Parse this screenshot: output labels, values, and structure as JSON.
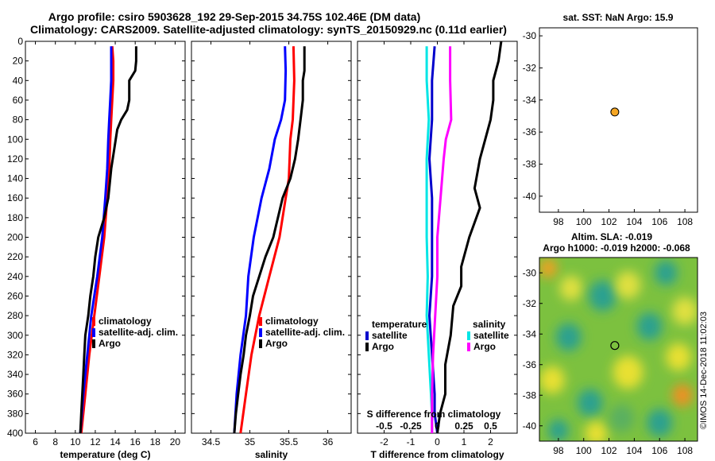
{
  "title_line1": "Argo profile: csiro 5903628_192 29-Sep-2015 34.75S 102.46E (DM data)",
  "title_line2": "Climatology: CARS2009. Satellite-adjusted climatology: synTS_20150929.nc (0.11d earlier)",
  "watermark": "©IMOS 14-Dec-2018 11:02:03",
  "chart_data": [
    {
      "id": "temperature",
      "type": "line",
      "xlabel": "temperature (deg C)",
      "ylabel": "",
      "xlim": [
        5,
        21
      ],
      "ylim": [
        400,
        0
      ],
      "xticks": [
        6,
        8,
        10,
        12,
        14,
        16,
        18,
        20
      ],
      "yticks": [
        0,
        20,
        40,
        60,
        80,
        100,
        120,
        140,
        160,
        180,
        200,
        220,
        240,
        260,
        280,
        300,
        320,
        340,
        360,
        380,
        400
      ],
      "legend": [
        "climatology",
        "satellite-adj. clim.",
        "Argo"
      ],
      "series": [
        {
          "name": "climatology",
          "color": "#ff0000",
          "depth": [
            5,
            20,
            40,
            60,
            80,
            100,
            130,
            160,
            200,
            240,
            280,
            320,
            360,
            400
          ],
          "values": [
            13.7,
            13.8,
            13.8,
            13.7,
            13.6,
            13.5,
            13.4,
            13.2,
            12.9,
            12.4,
            11.9,
            11.4,
            11.0,
            10.6
          ]
        },
        {
          "name": "satellite-adj. clim.",
          "color": "#0000ff",
          "depth": [
            5,
            20,
            40,
            60,
            80,
            100,
            130,
            160,
            200,
            240,
            280,
            320,
            360,
            400
          ],
          "values": [
            13.6,
            13.6,
            13.6,
            13.5,
            13.4,
            13.3,
            13.2,
            13.0,
            12.7,
            12.2,
            11.6,
            11.2,
            10.8,
            10.5
          ]
        },
        {
          "name": "Argo",
          "color": "#000000",
          "depth": [
            5,
            20,
            30,
            40,
            60,
            70,
            80,
            90,
            110,
            130,
            160,
            180,
            200,
            220,
            240,
            260,
            280,
            300,
            320,
            340,
            360,
            380,
            400
          ],
          "values": [
            16.1,
            16.1,
            16.0,
            15.4,
            15.4,
            15.2,
            14.6,
            14.2,
            13.9,
            13.6,
            13.3,
            12.9,
            12.3,
            12.0,
            11.8,
            11.5,
            11.3,
            11.0,
            10.9,
            10.8,
            10.7,
            10.6,
            10.5
          ]
        }
      ]
    },
    {
      "id": "salinity",
      "type": "line",
      "xlabel": "salinity",
      "ylabel": "",
      "xlim": [
        34.25,
        36.3
      ],
      "ylim": [
        400,
        0
      ],
      "xticks": [
        34.5,
        35,
        35.5,
        36
      ],
      "legend": [
        "climatology",
        "satellite-adj. clim.",
        "Argo"
      ],
      "series": [
        {
          "name": "climatology",
          "color": "#ff0000",
          "depth": [
            5,
            40,
            80,
            100,
            140,
            160,
            200,
            240,
            280,
            320,
            360,
            400
          ],
          "values": [
            35.56,
            35.57,
            35.55,
            35.52,
            35.5,
            35.46,
            35.38,
            35.25,
            35.12,
            35.02,
            34.95,
            34.88
          ]
        },
        {
          "name": "satellite-adj. clim.",
          "color": "#0000ff",
          "depth": [
            5,
            30,
            60,
            80,
            100,
            130,
            160,
            200,
            240,
            280,
            320,
            360,
            400
          ],
          "values": [
            35.45,
            35.46,
            35.45,
            35.4,
            35.32,
            35.25,
            35.15,
            35.05,
            34.98,
            34.95,
            34.88,
            34.83,
            34.8
          ]
        },
        {
          "name": "Argo",
          "color": "#000000",
          "depth": [
            5,
            30,
            40,
            60,
            80,
            100,
            120,
            140,
            160,
            200,
            220,
            240,
            260,
            280,
            300,
            320,
            340,
            360,
            380,
            400
          ],
          "values": [
            35.7,
            35.7,
            35.68,
            35.68,
            35.65,
            35.62,
            35.58,
            35.52,
            35.42,
            35.3,
            35.2,
            35.12,
            35.04,
            35.0,
            34.95,
            34.92,
            34.88,
            34.85,
            34.82,
            34.8
          ]
        }
      ]
    },
    {
      "id": "difference",
      "type": "line",
      "xlabel": "T difference from climatology",
      "xlabel_top": "S difference from climatology",
      "xlim": [
        -3,
        3
      ],
      "ylim": [
        400,
        0
      ],
      "xticks": [
        -2,
        -1,
        0,
        1,
        2
      ],
      "xticks_s_labels": [
        "-0.5",
        "-0.25",
        "0",
        "0.25",
        "0.5"
      ],
      "xticks_s_values": [
        -0.5,
        -0.25,
        0,
        0.25,
        0.5
      ],
      "legend_temperature_title": "temperature",
      "legend_salinity_title": "salinity",
      "legend_temperature": [
        "satellite",
        "Argo"
      ],
      "legend_salinity": [
        "satellite",
        "Argo"
      ],
      "series": [
        {
          "name": "temperature satellite",
          "color": "#0000cc",
          "depth": [
            5,
            40,
            80,
            120,
            160,
            200,
            240,
            280,
            320,
            360,
            380,
            400
          ],
          "values": [
            -0.1,
            -0.2,
            -0.2,
            -0.3,
            -0.2,
            -0.2,
            -0.2,
            -0.3,
            -0.2,
            -0.1,
            -0.1,
            0.0
          ]
        },
        {
          "name": "temperature Argo",
          "color": "#000000",
          "depth": [
            0,
            20,
            40,
            60,
            80,
            100,
            120,
            150,
            170,
            200,
            230,
            250,
            270,
            300,
            330,
            360,
            380,
            400
          ],
          "values": [
            2.4,
            2.3,
            2.1,
            2.1,
            2.0,
            1.8,
            1.6,
            1.4,
            1.6,
            1.2,
            0.9,
            0.9,
            0.6,
            0.5,
            0.3,
            0.3,
            0.1,
            0.0
          ]
        },
        {
          "name": "salinity satellite",
          "color": "#00e5e5",
          "depth": [
            5,
            40,
            80,
            120,
            160,
            200,
            240,
            280,
            320,
            360,
            380,
            400
          ],
          "values": [
            -0.1,
            -0.1,
            -0.08,
            -0.1,
            -0.1,
            -0.1,
            -0.09,
            -0.1,
            -0.08,
            -0.06,
            -0.05,
            -0.05
          ]
        },
        {
          "name": "salinity Argo",
          "color": "#ff00ff",
          "depth": [
            5,
            40,
            80,
            100,
            120,
            160,
            200,
            240,
            280,
            320,
            360,
            380,
            400
          ],
          "values": [
            0.12,
            0.12,
            0.13,
            0.08,
            0.06,
            0.03,
            0.0,
            0.0,
            -0.02,
            -0.04,
            -0.05,
            -0.05,
            -0.05
          ]
        }
      ]
    },
    {
      "id": "sst-map",
      "type": "scatter",
      "title": "sat. SST: NaN Argo: 15.9",
      "xlim": [
        96.5,
        109
      ],
      "ylim": [
        -41,
        -29.5
      ],
      "xticks": [
        98,
        100,
        102,
        104,
        106,
        108
      ],
      "yticks": [
        -30,
        -32,
        -34,
        -36,
        -38,
        -40
      ],
      "point": {
        "lon": 102.46,
        "lat": -34.75,
        "color": "#f5a623"
      }
    },
    {
      "id": "sla-map",
      "type": "heatmap",
      "title_line1": "Altim. SLA: -0.019",
      "title_line2": "Argo h1000: -0.019 h2000: -0.068",
      "xlim": [
        96.5,
        109
      ],
      "ylim": [
        -41,
        -29
      ],
      "xticks": [
        98,
        100,
        102,
        104,
        106,
        108
      ],
      "yticks": [
        -30,
        -32,
        -34,
        -36,
        -38,
        -40
      ],
      "point": {
        "lon": 102.46,
        "lat": -34.75
      },
      "blobs": [
        {
          "lon": 97.2,
          "lat": -29.7,
          "color": "#f0a020",
          "r": 0.7
        },
        {
          "lon": 97.5,
          "lat": -37.0,
          "color": "#e8e030",
          "r": 1.0
        },
        {
          "lon": 99.0,
          "lat": -31.0,
          "color": "#e0e040",
          "r": 0.9
        },
        {
          "lon": 98.8,
          "lat": -34.2,
          "color": "#2aa090",
          "r": 1.0
        },
        {
          "lon": 101.5,
          "lat": -31.5,
          "color": "#2aa090",
          "r": 1.1
        },
        {
          "lon": 103.5,
          "lat": -30.8,
          "color": "#e0e040",
          "r": 1.0
        },
        {
          "lon": 100.5,
          "lat": -38.5,
          "color": "#2aa090",
          "r": 1.0
        },
        {
          "lon": 103.5,
          "lat": -36.5,
          "color": "#e8e030",
          "r": 1.2
        },
        {
          "lon": 105.2,
          "lat": -33.5,
          "color": "#2aa090",
          "r": 1.0
        },
        {
          "lon": 106.5,
          "lat": -30.0,
          "color": "#2aa090",
          "r": 0.9
        },
        {
          "lon": 108.0,
          "lat": -32.5,
          "color": "#e0e040",
          "r": 1.0
        },
        {
          "lon": 107.5,
          "lat": -35.5,
          "color": "#e8e030",
          "r": 1.0
        },
        {
          "lon": 107.8,
          "lat": -38.0,
          "color": "#f09020",
          "r": 0.8
        },
        {
          "lon": 106.0,
          "lat": -39.8,
          "color": "#2aa090",
          "r": 1.0
        },
        {
          "lon": 101.0,
          "lat": -40.5,
          "color": "#e8e030",
          "r": 0.9
        },
        {
          "lon": 103.0,
          "lat": -39.5,
          "color": "#5ab060",
          "r": 1.0
        },
        {
          "lon": 98.0,
          "lat": -40.3,
          "color": "#2aa090",
          "r": 0.8
        }
      ]
    }
  ]
}
